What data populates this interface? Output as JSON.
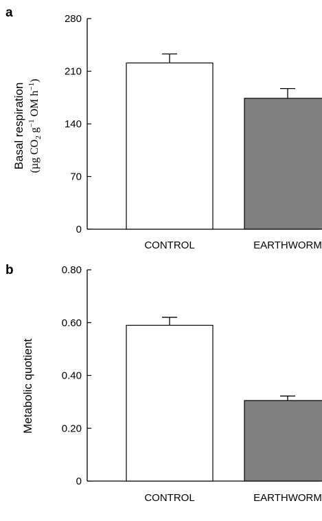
{
  "chart_data": [
    {
      "type": "bar",
      "panel_label": "a",
      "categories": [
        "CONTROL",
        "EARTHWORM"
      ],
      "values": [
        221,
        174
      ],
      "errors": [
        12,
        13
      ],
      "bar_colors": [
        "#ffffff",
        "#808080"
      ],
      "ylim": [
        0,
        280
      ],
      "yticks": [
        0,
        70,
        140,
        210,
        280
      ],
      "ytick_labels": [
        "0",
        "70",
        "140",
        "210",
        "280"
      ],
      "ylabel": "Basal respiration",
      "ylabel_units": {
        "open": "(µg CO",
        "sub": "2",
        "mid1": " g",
        "sup1": "−1",
        "mid2": " OM h",
        "sup2": "−1",
        "close": ")"
      }
    },
    {
      "type": "bar",
      "panel_label": "b",
      "categories": [
        "CONTROL",
        "EARTHWORM"
      ],
      "values": [
        0.59,
        0.305
      ],
      "errors": [
        0.03,
        0.017
      ],
      "bar_colors": [
        "#ffffff",
        "#808080"
      ],
      "ylim": [
        0,
        0.8
      ],
      "yticks": [
        0,
        0.2,
        0.4,
        0.6,
        0.8
      ],
      "ytick_labels": [
        "0",
        "0.20",
        "0.40",
        "0.60",
        "0.80"
      ],
      "ylabel": "Metabolic quotient"
    }
  ]
}
